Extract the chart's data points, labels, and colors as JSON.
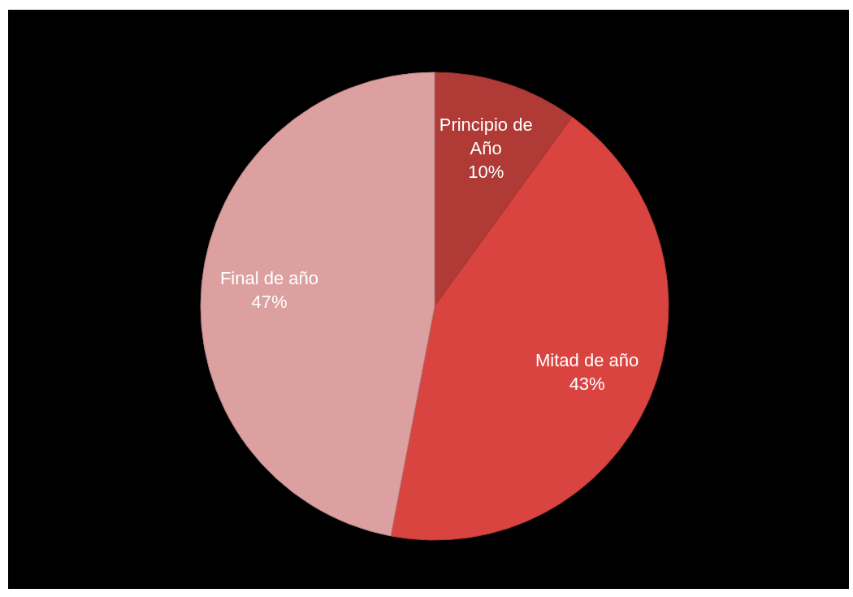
{
  "chart_data": {
    "type": "pie",
    "categories": [
      "Principio de Año",
      "Mitad de año",
      "Final de año"
    ],
    "values": [
      10,
      43,
      47
    ],
    "colors": [
      "#b03a36",
      "#d94440",
      "#dca0a0"
    ],
    "value_labels": [
      "10%",
      "43%",
      "47%"
    ]
  }
}
